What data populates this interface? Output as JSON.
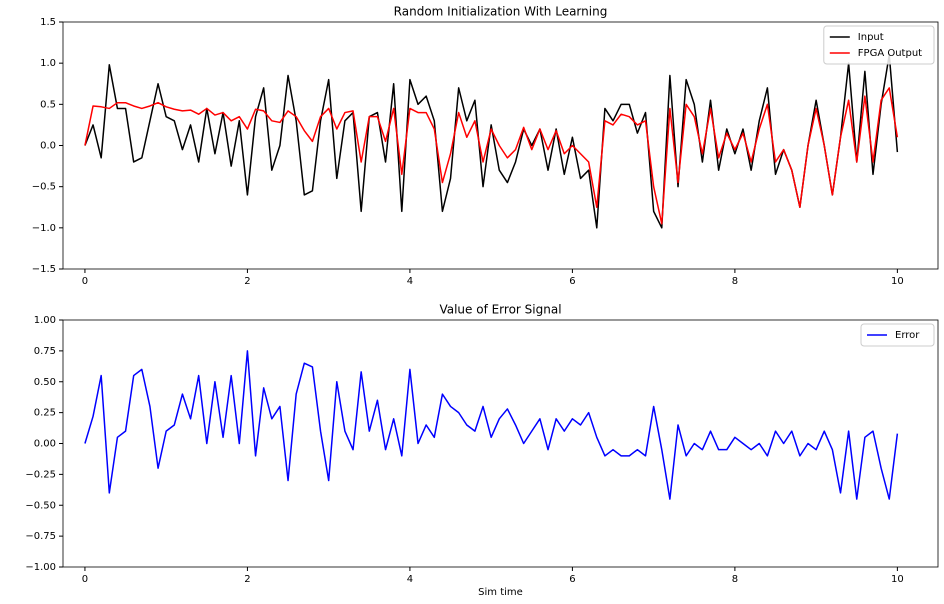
{
  "chart_data": [
    {
      "type": "line",
      "title": "Random Initialization With Learning",
      "x": [
        0,
        0.1,
        0.2,
        0.3,
        0.4,
        0.5,
        0.6,
        0.7,
        0.8,
        0.9,
        1,
        1.1,
        1.2,
        1.3,
        1.4,
        1.5,
        1.6,
        1.7,
        1.8,
        1.9,
        2,
        2.1,
        2.2,
        2.3,
        2.4,
        2.5,
        2.6,
        2.7,
        2.8,
        2.9,
        3,
        3.1,
        3.2,
        3.3,
        3.4,
        3.5,
        3.6,
        3.7,
        3.8,
        3.9,
        4,
        4.1,
        4.2,
        4.3,
        4.4,
        4.5,
        4.6,
        4.7,
        4.8,
        4.9,
        5,
        5.1,
        5.2,
        5.3,
        5.4,
        5.5,
        5.6,
        5.7,
        5.8,
        5.9,
        6,
        6.1,
        6.2,
        6.3,
        6.4,
        6.5,
        6.6,
        6.7,
        6.8,
        6.9,
        7,
        7.1,
        7.2,
        7.3,
        7.4,
        7.5,
        7.6,
        7.7,
        7.8,
        7.9,
        8,
        8.1,
        8.2,
        8.3,
        8.4,
        8.5,
        8.6,
        8.7,
        8.8,
        8.9,
        9,
        9.1,
        9.2,
        9.3,
        9.4,
        9.5,
        9.6,
        9.7,
        9.8,
        9.9,
        10
      ],
      "series": [
        {
          "name": "Input",
          "color": "#000000",
          "values": [
            0,
            0.25,
            -0.15,
            0.98,
            0.45,
            0.45,
            -0.2,
            -0.15,
            0.3,
            0.75,
            0.35,
            0.3,
            -0.05,
            0.25,
            -0.2,
            0.45,
            -0.1,
            0.4,
            -0.25,
            0.3,
            -0.6,
            0.35,
            0.7,
            -0.3,
            0,
            0.85,
            0.3,
            -0.6,
            -0.55,
            0.3,
            0.8,
            -0.4,
            0.3,
            0.4,
            -0.8,
            0.35,
            0.4,
            -0.2,
            0.75,
            -0.8,
            0.8,
            0.5,
            0.6,
            0.3,
            -0.8,
            -0.4,
            0.7,
            0.3,
            0.55,
            -0.5,
            0.25,
            -0.3,
            -0.45,
            -0.2,
            0.2,
            0,
            0.2,
            -0.3,
            0.2,
            -0.35,
            0.1,
            -0.4,
            -0.3,
            -1,
            0.45,
            0.3,
            0.5,
            0.5,
            0.15,
            0.4,
            -0.8,
            -1,
            0.85,
            -0.5,
            0.8,
            0.5,
            -0.2,
            0.55,
            -0.3,
            0.2,
            -0.1,
            0.2,
            -0.3,
            0.3,
            0.7,
            -0.35,
            -0.05,
            -0.3,
            -0.75,
            0,
            0.55,
            0,
            -0.6,
            0.1,
            1,
            -0.2,
            0.9,
            -0.35,
            0.5,
            1.1,
            -0.08
          ]
        },
        {
          "name": "FPGA Output",
          "color": "#ff0000",
          "values": [
            0,
            0.48,
            0.47,
            0.45,
            0.52,
            0.52,
            0.48,
            0.45,
            0.48,
            0.52,
            0.47,
            0.44,
            0.42,
            0.43,
            0.38,
            0.45,
            0.37,
            0.4,
            0.3,
            0.35,
            0.2,
            0.44,
            0.42,
            0.3,
            0.28,
            0.42,
            0.35,
            0.18,
            0.05,
            0.35,
            0.45,
            0.2,
            0.4,
            0.42,
            -0.2,
            0.35,
            0.35,
            0.05,
            0.45,
            -0.35,
            0.45,
            0.4,
            0.4,
            0.2,
            -0.45,
            -0.1,
            0.4,
            0.1,
            0.3,
            -0.2,
            0.2,
            0,
            -0.15,
            -0.05,
            0.22,
            -0.05,
            0.2,
            -0.05,
            0.18,
            -0.1,
            0,
            -0.1,
            -0.2,
            -0.75,
            0.3,
            0.25,
            0.38,
            0.35,
            0.25,
            0.3,
            -0.5,
            -0.95,
            0.45,
            -0.45,
            0.5,
            0.35,
            -0.1,
            0.45,
            -0.15,
            0.15,
            -0.05,
            0.15,
            -0.2,
            0.2,
            0.5,
            -0.2,
            -0.05,
            -0.3,
            -0.75,
            0,
            0.45,
            0,
            -0.6,
            0.1,
            0.55,
            -0.2,
            0.6,
            -0.2,
            0.55,
            0.7,
            0.1
          ]
        }
      ],
      "xlim": [
        -0.27,
        10.5
      ],
      "ylim": [
        -1.5,
        1.5
      ],
      "xticks": [
        0,
        2,
        4,
        6,
        8,
        10
      ],
      "yticks": [
        {
          "value": -1.5,
          "label": "−1.5"
        },
        {
          "value": -1.0,
          "label": "−1.0"
        },
        {
          "value": -0.5,
          "label": "−0.5"
        },
        {
          "value": 0,
          "label": "0.0"
        },
        0.5,
        {
          "value": 1.0,
          "label": "1.0"
        },
        1.5
      ],
      "legend": "upper right"
    },
    {
      "type": "line",
      "title": "Value of Error Signal",
      "xlabel": "Sim time",
      "x": [
        0,
        0.1,
        0.2,
        0.3,
        0.4,
        0.5,
        0.6,
        0.7,
        0.8,
        0.9,
        1,
        1.1,
        1.2,
        1.3,
        1.4,
        1.5,
        1.6,
        1.7,
        1.8,
        1.9,
        2,
        2.1,
        2.2,
        2.3,
        2.4,
        2.5,
        2.6,
        2.7,
        2.8,
        2.9,
        3,
        3.1,
        3.2,
        3.3,
        3.4,
        3.5,
        3.6,
        3.7,
        3.8,
        3.9,
        4,
        4.1,
        4.2,
        4.3,
        4.4,
        4.5,
        4.6,
        4.7,
        4.8,
        4.9,
        5,
        5.1,
        5.2,
        5.3,
        5.4,
        5.5,
        5.6,
        5.7,
        5.8,
        5.9,
        6,
        6.1,
        6.2,
        6.3,
        6.4,
        6.5,
        6.6,
        6.7,
        6.8,
        6.9,
        7,
        7.1,
        7.2,
        7.3,
        7.4,
        7.5,
        7.6,
        7.7,
        7.8,
        7.9,
        8,
        8.1,
        8.2,
        8.3,
        8.4,
        8.5,
        8.6,
        8.7,
        8.8,
        8.9,
        9,
        9.1,
        9.2,
        9.3,
        9.4,
        9.5,
        9.6,
        9.7,
        9.8,
        9.9,
        10
      ],
      "series": [
        {
          "name": "Error",
          "color": "#0000ff",
          "values": [
            0,
            0.22,
            0.55,
            -0.4,
            0.05,
            0.1,
            0.55,
            0.6,
            0.3,
            -0.2,
            0.1,
            0.15,
            0.4,
            0.2,
            0.55,
            0,
            0.5,
            0.05,
            0.55,
            0,
            0.75,
            -0.1,
            0.45,
            0.2,
            0.3,
            -0.3,
            0.4,
            0.65,
            0.62,
            0.1,
            -0.3,
            0.5,
            0.1,
            -0.05,
            0.58,
            0.1,
            0.35,
            -0.05,
            0.2,
            -0.1,
            0.6,
            0,
            0.15,
            0.05,
            0.4,
            0.3,
            0.25,
            0.15,
            0.1,
            0.3,
            0.05,
            0.2,
            0.28,
            0.15,
            0,
            0.1,
            0.2,
            -0.05,
            0.2,
            0.1,
            0.2,
            0.15,
            0.25,
            0.05,
            -0.1,
            -0.05,
            -0.1,
            -0.1,
            -0.05,
            -0.1,
            0.3,
            -0.05,
            -0.45,
            0.15,
            -0.1,
            0,
            -0.05,
            0.1,
            -0.05,
            -0.05,
            0.05,
            0,
            -0.05,
            0,
            -0.1,
            0.1,
            0,
            0.1,
            -0.1,
            0,
            -0.05,
            0.1,
            -0.05,
            -0.4,
            0.1,
            -0.45,
            0.05,
            0.1,
            -0.2,
            -0.45,
            0.08
          ]
        }
      ],
      "xlim": [
        -0.27,
        10.5
      ],
      "ylim": [
        -1.0,
        1.0
      ],
      "xticks": [
        0,
        2,
        4,
        6,
        8,
        10
      ],
      "yticks": [
        {
          "value": -1.0,
          "label": "−1.00"
        },
        {
          "value": -0.75,
          "label": "−0.75"
        },
        {
          "value": -0.5,
          "label": "−0.50"
        },
        {
          "value": -0.25,
          "label": "−0.25"
        },
        {
          "value": 0,
          "label": "0.00"
        },
        {
          "value": 0.25,
          "label": "0.25"
        },
        {
          "value": 0.5,
          "label": "0.50"
        },
        {
          "value": 0.75,
          "label": "0.75"
        },
        {
          "value": 1.0,
          "label": "1.00"
        }
      ],
      "legend": "upper right"
    }
  ]
}
